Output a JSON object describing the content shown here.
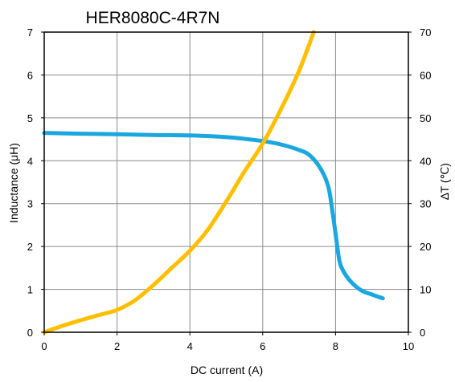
{
  "chart_data": {
    "type": "line",
    "title": "HER8080C-4R7N",
    "xlabel": "DC current (A)",
    "ylabel_left": "Inductance (μH)",
    "ylabel_right": "∆T (℃)",
    "xlim": [
      0,
      10
    ],
    "ylim_left": [
      0,
      7
    ],
    "ylim_right": [
      0,
      70
    ],
    "x_ticks": [
      "0",
      "2",
      "4",
      "6",
      "8",
      "10"
    ],
    "y_left_ticks": [
      "0",
      "1",
      "2",
      "3",
      "4",
      "5",
      "6",
      "7"
    ],
    "y_right_ticks": [
      "0",
      "10",
      "20",
      "30",
      "40",
      "50",
      "60",
      "70"
    ],
    "grid": true,
    "series": [
      {
        "axis": "left",
        "color": "#1aa7e0",
        "x": [
          0,
          1,
          2,
          3,
          4,
          5,
          5.5,
          6,
          6.5,
          7,
          7.3,
          7.6,
          7.8,
          7.9,
          8.0,
          8.1,
          8.2,
          8.4,
          8.7,
          9.0,
          9.3
        ],
        "y": [
          4.65,
          4.63,
          4.62,
          4.6,
          4.59,
          4.55,
          4.51,
          4.46,
          4.38,
          4.25,
          4.12,
          3.8,
          3.4,
          2.9,
          2.3,
          1.7,
          1.45,
          1.2,
          0.98,
          0.88,
          0.79
        ]
      },
      {
        "axis": "right",
        "color": "#ffbf00",
        "x": [
          0,
          0.5,
          1,
          1.5,
          2,
          2.5,
          3,
          3.5,
          4,
          4.5,
          5,
          5.5,
          6,
          6.5,
          7,
          7.4
        ],
        "y": [
          0,
          1.5,
          2.8,
          4,
          5.2,
          7.5,
          11,
          15,
          19,
          24,
          30.5,
          37.5,
          44,
          52,
          61,
          70
        ]
      }
    ]
  }
}
